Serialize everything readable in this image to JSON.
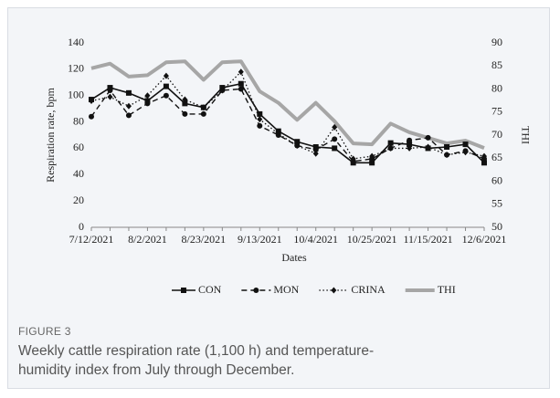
{
  "chart_data": {
    "type": "line",
    "categories": [
      "7/12/2021",
      null,
      null,
      "8/2/2021",
      null,
      null,
      "8/23/2021",
      null,
      null,
      "9/13/2021",
      null,
      null,
      "10/4/2021",
      null,
      null,
      "10/25/2021",
      null,
      null,
      "11/15/2021",
      null,
      null,
      "12/6/2021"
    ],
    "series": [
      {
        "name": "CON",
        "color": "#111111",
        "dash": "solid",
        "marker": "square",
        "width": 1.6,
        "values": [
          97,
          106,
          102,
          96,
          107,
          94,
          91,
          106,
          109,
          86,
          73,
          65,
          61,
          60,
          49,
          49,
          64,
          63,
          60,
          61,
          63,
          49
        ]
      },
      {
        "name": "MON",
        "color": "#111111",
        "dash": "dashed",
        "marker": "circle",
        "width": 1.4,
        "values": [
          84,
          104,
          85,
          94,
          100,
          86,
          86,
          104,
          105,
          77,
          70,
          62,
          59,
          67,
          50,
          52,
          60,
          66,
          68,
          55,
          58,
          52
        ]
      },
      {
        "name": "CRINA",
        "color": "#111111",
        "dash": "dotted",
        "marker": "diamond",
        "width": 1.3,
        "values": [
          96,
          99,
          92,
          100,
          115,
          97,
          91,
          104,
          118,
          82,
          71,
          62,
          56,
          76,
          52,
          54,
          60,
          60,
          61,
          55,
          57,
          54
        ]
      },
      {
        "name": "THI",
        "color": "#a6a6a6",
        "dash": "solid",
        "marker": "none",
        "width": 4,
        "axis": "y2",
        "values": [
          84.5,
          85.5,
          82.7,
          83,
          85.8,
          86,
          82,
          85.8,
          86,
          79.5,
          77,
          73.3,
          77,
          73,
          68.2,
          68,
          72.5,
          70.6,
          69.4,
          68.2,
          68.8,
          67.2
        ]
      }
    ],
    "x_label": "Dates",
    "y_label": "Respiration rate, bpm",
    "y2_label": "THI",
    "ylim": [
      0,
      140
    ],
    "yticks": [
      0,
      20,
      40,
      60,
      80,
      100,
      120,
      140
    ],
    "y2lim": [
      50,
      90
    ],
    "y2ticks": [
      50,
      55,
      60,
      65,
      70,
      75,
      80,
      85,
      90
    ],
    "legend": "bottom"
  },
  "figure": {
    "label": "FIGURE 3",
    "caption": "Weekly cattle respiration rate (1,100 h) and temperature-humidity index from July through December."
  }
}
